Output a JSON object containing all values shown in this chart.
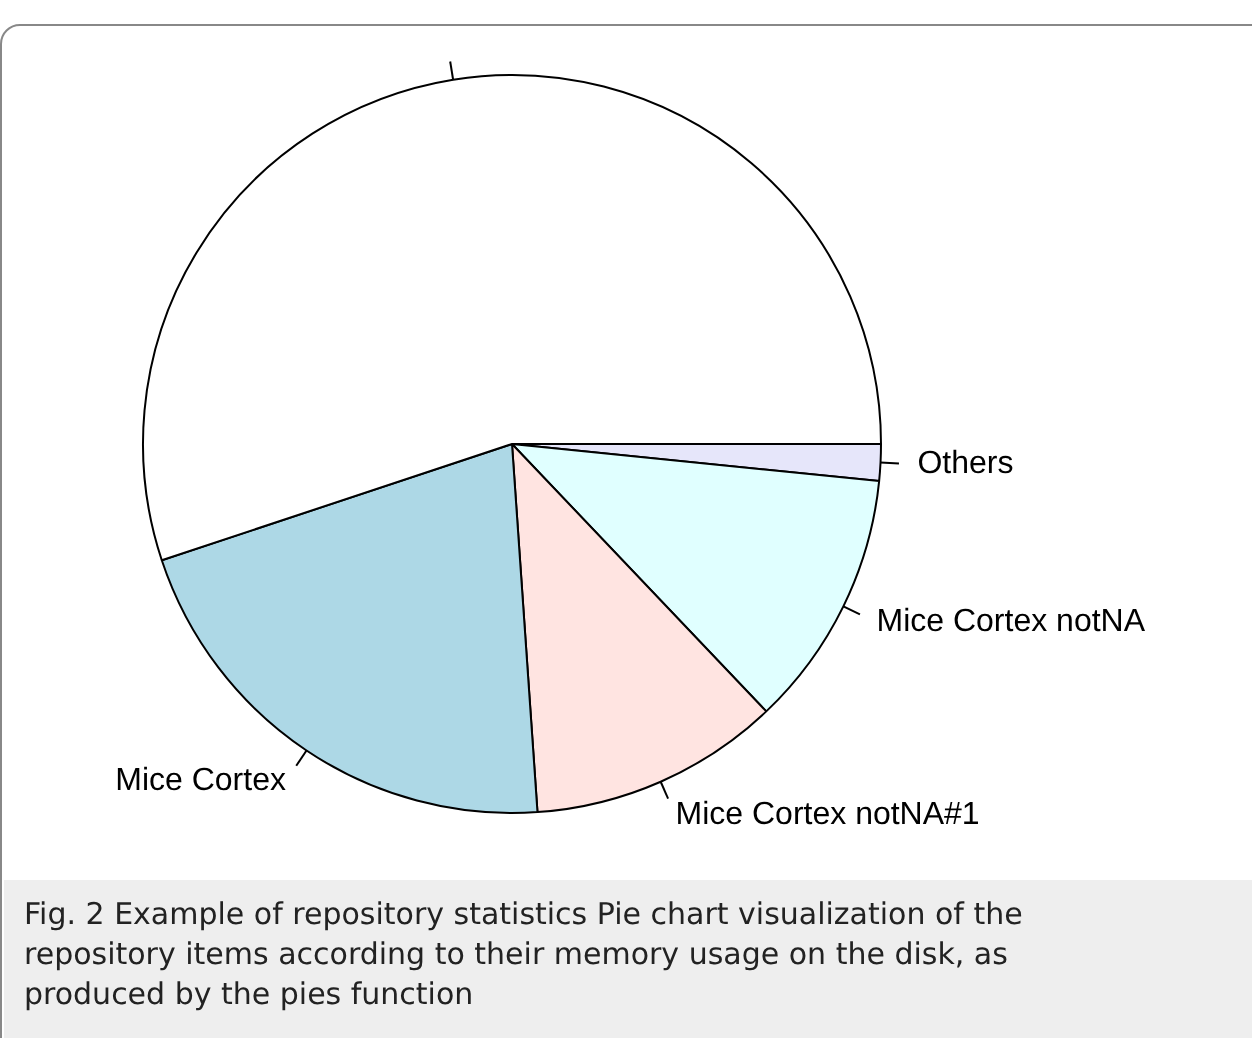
{
  "chart_data": {
    "type": "pie",
    "categories": [
      "Others",
      "Mice Cortex notNA",
      "Mice Cortex notNA#1",
      "Mice Cortex",
      null
    ],
    "values": [
      1.6,
      11.3,
      11.0,
      21.0,
      55.1
    ],
    "colors": [
      "#e6e6fa",
      "#e0ffff",
      "#ffe4e1",
      "#add8e6",
      "#ffffff"
    ],
    "legend": false,
    "annotations": [
      "Fig. 2 Example of repository statistics Pie chart visualization of the repository items according to their memory usage on the disk, as produced by the pies function"
    ]
  }
}
